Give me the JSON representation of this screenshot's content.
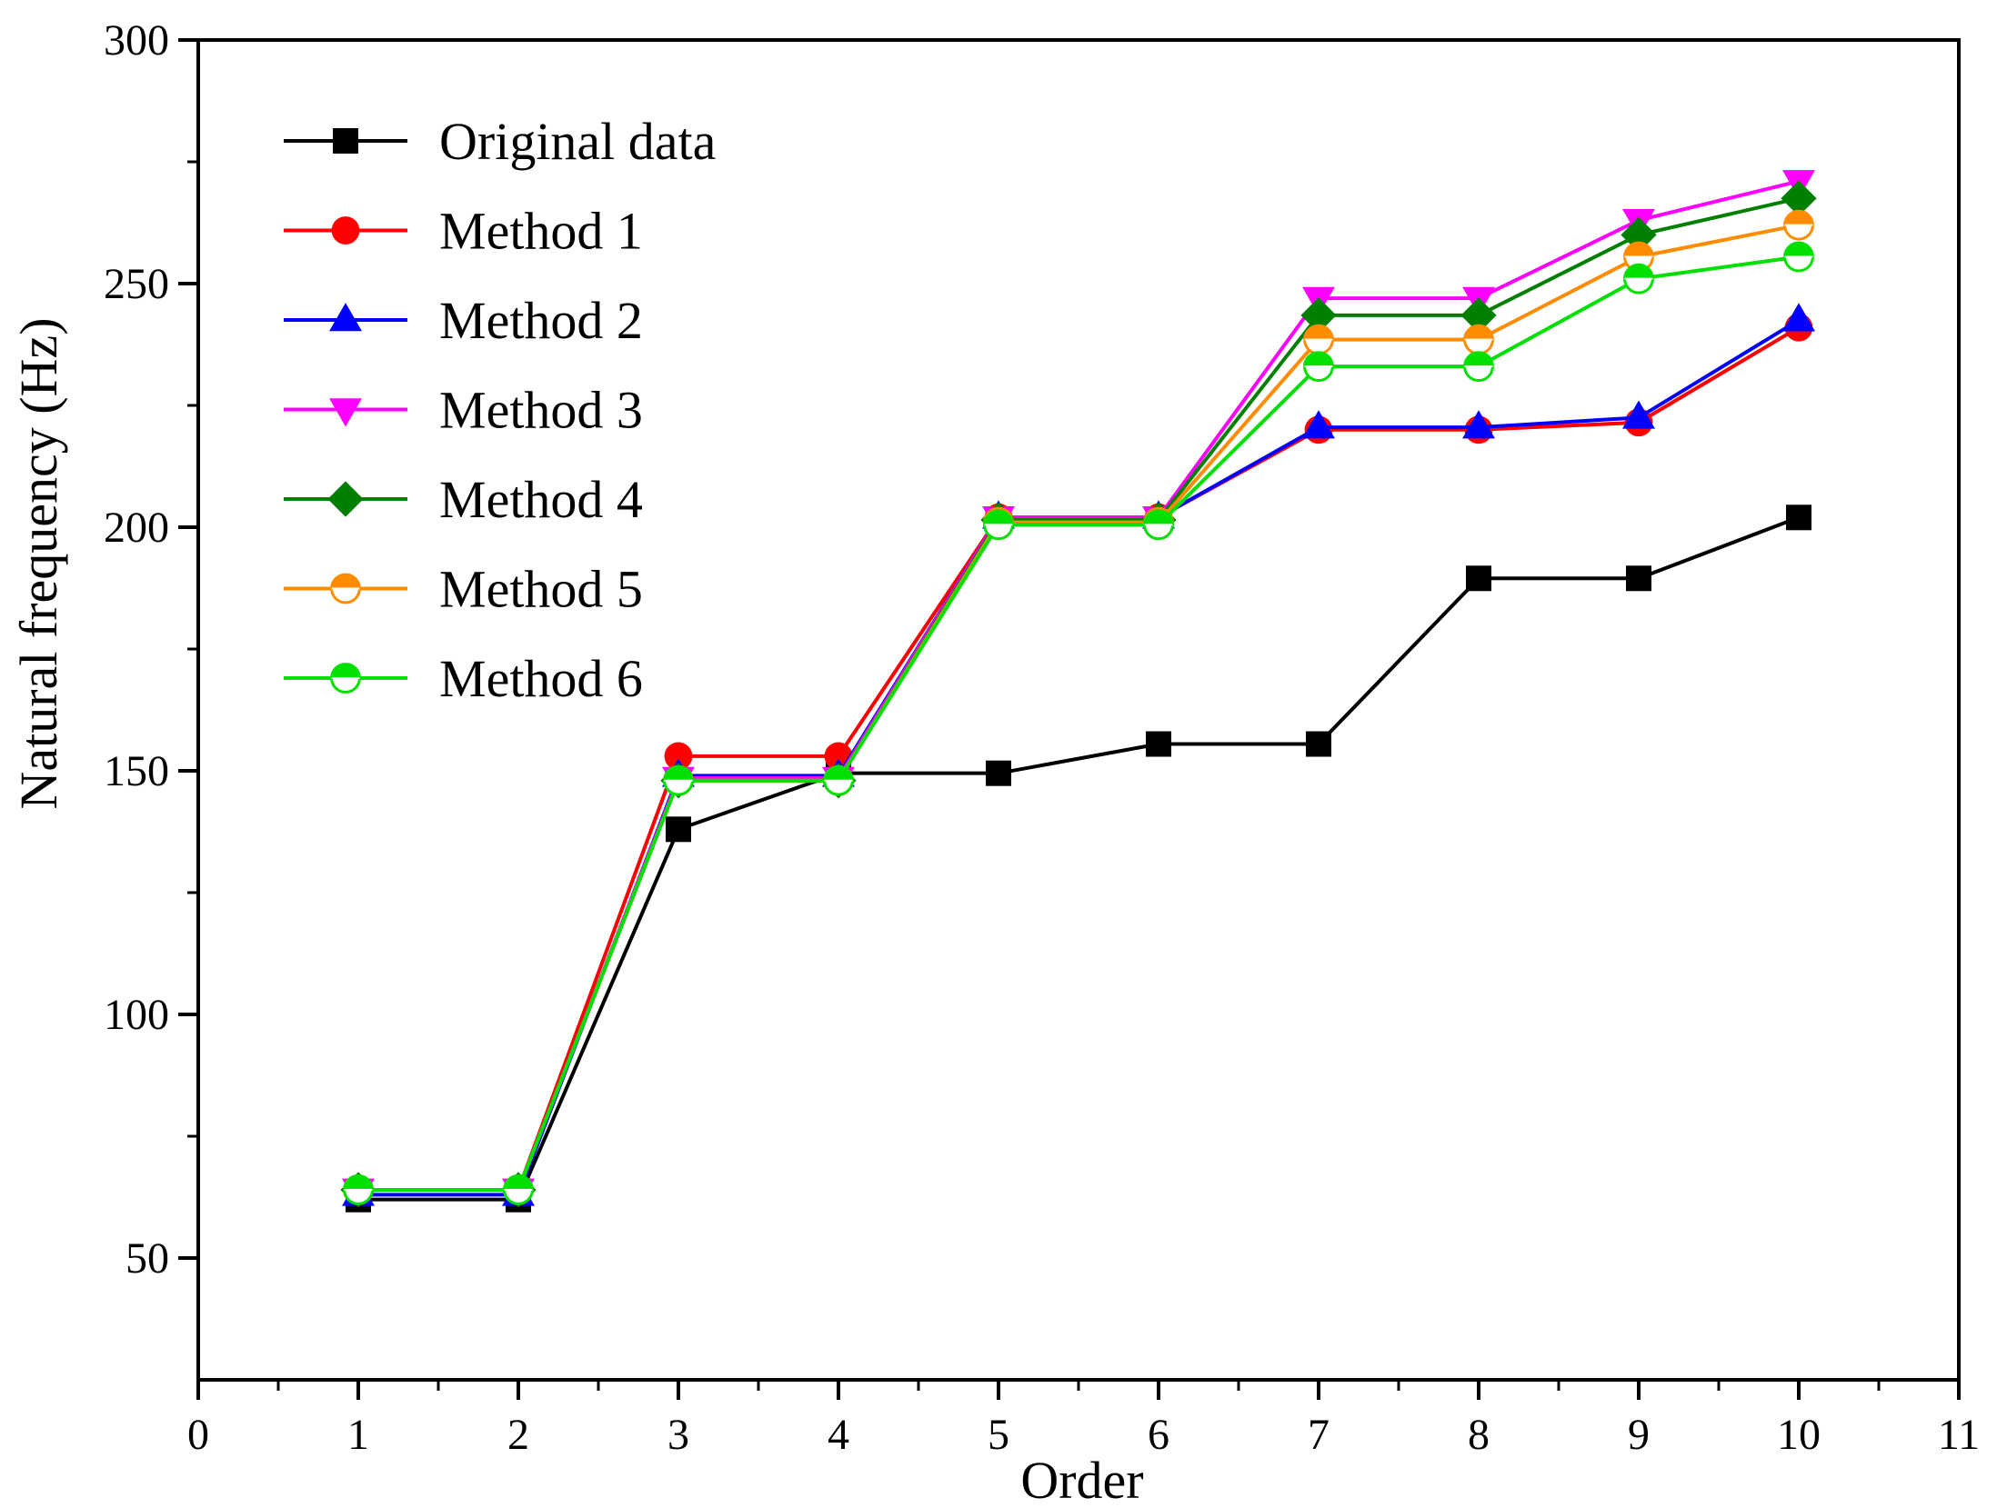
{
  "chart_data": {
    "type": "line",
    "title": "",
    "xlabel": "Order",
    "ylabel": "Natural frequency (Hz)",
    "xlim": [
      0,
      11
    ],
    "ylim": [
      25,
      300
    ],
    "x_ticks": [
      0,
      1,
      2,
      3,
      4,
      5,
      6,
      7,
      8,
      9,
      10,
      11
    ],
    "y_ticks": [
      50,
      100,
      150,
      200,
      250,
      300
    ],
    "grid": false,
    "legend_position": "top-left",
    "x": [
      1,
      2,
      3,
      4,
      5,
      6,
      7,
      8,
      9,
      10
    ],
    "series": [
      {
        "name": "Original data",
        "color": "#000000",
        "marker": "square",
        "values": [
          62,
          62,
          138,
          149.5,
          149.5,
          155.5,
          155.5,
          189.5,
          189.5,
          202
        ]
      },
      {
        "name": "Method 1",
        "color": "#ff0000",
        "marker": "circle",
        "values": [
          64,
          64,
          153,
          153,
          202,
          202,
          220,
          220,
          221.5,
          241
        ]
      },
      {
        "name": "Method 2",
        "color": "#0000ff",
        "marker": "triangle-up",
        "values": [
          63,
          63,
          149,
          149,
          202,
          202,
          220.5,
          220.5,
          222.5,
          242.5
        ]
      },
      {
        "name": "Method 3",
        "color": "#ff00ff",
        "marker": "triangle-down",
        "values": [
          64,
          64,
          148.5,
          148.5,
          202,
          202,
          247,
          247,
          263,
          271
        ]
      },
      {
        "name": "Method 4",
        "color": "#007f00",
        "marker": "diamond",
        "values": [
          64,
          64,
          148,
          148,
          201.5,
          201.5,
          243.5,
          243.5,
          260,
          267.5
        ]
      },
      {
        "name": "Method 5",
        "color": "#ff8c00",
        "marker": "half-circle",
        "values": [
          64,
          64,
          148,
          148,
          201,
          201,
          238.5,
          238.5,
          255.5,
          262
        ]
      },
      {
        "name": "Method 6",
        "color": "#00e000",
        "marker": "half-circle",
        "values": [
          64,
          64,
          148,
          148,
          200.5,
          200.5,
          233,
          233,
          251,
          255.5
        ]
      }
    ]
  }
}
